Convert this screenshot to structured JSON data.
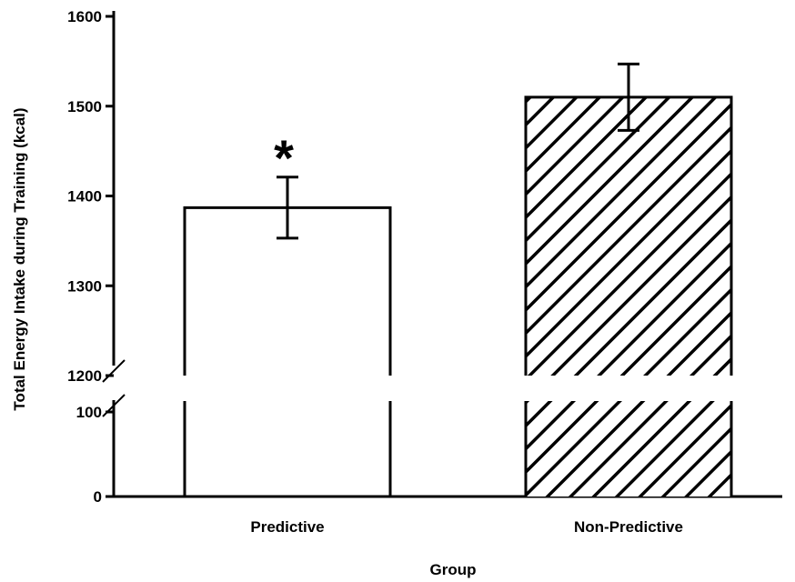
{
  "chart_data": {
    "type": "bar",
    "categories": [
      "Predictive",
      "Non-Predictive"
    ],
    "values": [
      1387,
      1510
    ],
    "errors": [
      34,
      37
    ],
    "fills": [
      "none",
      "diagonal-hatch"
    ],
    "significance_marks": [
      "*",
      ""
    ],
    "xlabel": "Group",
    "ylabel": "Total Energy Intake during Training (kcal)",
    "y_ticks": [
      0,
      100,
      1200,
      1300,
      1400,
      1500,
      1600
    ],
    "y_tick_labels": [
      "0",
      "100",
      "1200",
      "1300",
      "1400",
      "1500",
      "1600"
    ],
    "axis_break": {
      "lower_range": [
        0,
        100
      ],
      "upper_range": [
        1200,
        1600
      ]
    },
    "grid": false,
    "legend": "none"
  }
}
